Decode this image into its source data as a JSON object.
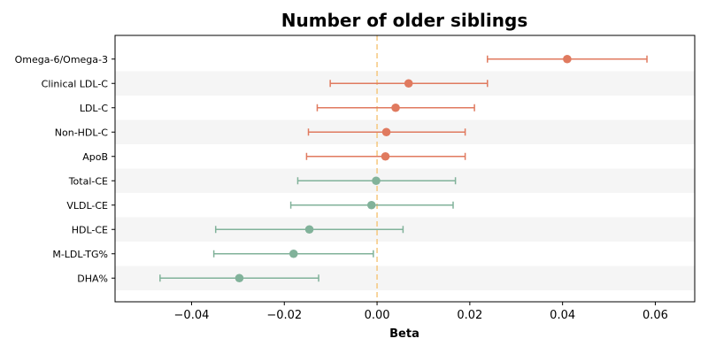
{
  "chart_data": {
    "type": "forest",
    "title": "Number of older siblings",
    "xlabel": "Beta",
    "ylabel": "",
    "xlim": [
      -0.0565,
      0.0685
    ],
    "xticks": [
      {
        "value": -0.04,
        "label": "−0.04"
      },
      {
        "value": -0.02,
        "label": "−0.02"
      },
      {
        "value": 0.0,
        "label": "0.00"
      },
      {
        "value": 0.02,
        "label": "0.02"
      },
      {
        "value": 0.04,
        "label": "0.04"
      },
      {
        "value": 0.06,
        "label": "0.06"
      }
    ],
    "reference_line": {
      "value": 0.0,
      "color": "#f5c77e",
      "style": "dashed"
    },
    "colors": {
      "positive_group": "#e07a5f",
      "negative_group": "#81b29a",
      "band": "#f5f5f5"
    },
    "rows": [
      {
        "label": "Omega-6/Omega-3",
        "beta": 0.041,
        "lower": 0.0238,
        "upper": 0.0582,
        "color": "#e07a5f"
      },
      {
        "label": "Clinical LDL-C",
        "beta": 0.0068,
        "lower": -0.0101,
        "upper": 0.0238,
        "color": "#e07a5f"
      },
      {
        "label": "LDL-C",
        "beta": 0.004,
        "lower": -0.0129,
        "upper": 0.021,
        "color": "#e07a5f"
      },
      {
        "label": "Non-HDL-C",
        "beta": 0.002,
        "lower": -0.0148,
        "upper": 0.019,
        "color": "#e07a5f"
      },
      {
        "label": "ApoB",
        "beta": 0.0018,
        "lower": -0.0152,
        "upper": 0.019,
        "color": "#e07a5f"
      },
      {
        "label": "Total-CE",
        "beta": -0.0002,
        "lower": -0.0171,
        "upper": 0.0169,
        "color": "#81b29a"
      },
      {
        "label": "VLDL-CE",
        "beta": -0.0012,
        "lower": -0.0186,
        "upper": 0.0164,
        "color": "#81b29a"
      },
      {
        "label": "HDL-CE",
        "beta": -0.0146,
        "lower": -0.0348,
        "upper": 0.0056,
        "color": "#81b29a"
      },
      {
        "label": "M-LDL-TG%",
        "beta": -0.018,
        "lower": -0.0352,
        "upper": -0.0008,
        "color": "#81b29a"
      },
      {
        "label": "DHA%",
        "beta": -0.0297,
        "lower": -0.0468,
        "upper": -0.0126,
        "color": "#81b29a"
      }
    ]
  }
}
